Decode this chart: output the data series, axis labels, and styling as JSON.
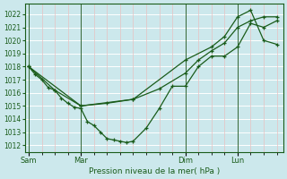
{
  "title": "",
  "xlabel": "Pression niveau de la mer( hPa )",
  "ylabel": "",
  "background_color": "#cce8ec",
  "grid_color": "#b0d8dc",
  "line_color": "#1a5c1a",
  "marker_color": "#1a5c1a",
  "ylim": [
    1011.5,
    1022.8
  ],
  "yticks": [
    1012,
    1013,
    1014,
    1015,
    1016,
    1017,
    1018,
    1019,
    1020,
    1021,
    1022
  ],
  "day_labels": [
    "Sam",
    "Mar",
    "Dim",
    "Lun"
  ],
  "day_positions": [
    0,
    4,
    12,
    16
  ],
  "xlim": [
    -0.3,
    19.5
  ],
  "vline_color": "#336633",
  "series1_x": [
    0,
    0.5,
    1,
    1.5,
    2,
    2.5,
    3,
    3.5,
    4,
    4.5,
    5,
    5.5,
    6,
    6.5,
    7,
    7.5,
    8,
    9,
    10,
    11,
    12,
    13,
    14,
    15,
    16,
    17,
    18,
    19
  ],
  "series1_y": [
    1018.0,
    1017.4,
    1017.0,
    1016.4,
    1016.2,
    1015.6,
    1015.2,
    1014.9,
    1014.8,
    1013.8,
    1013.5,
    1013.0,
    1012.5,
    1012.4,
    1012.3,
    1012.2,
    1012.3,
    1013.3,
    1014.8,
    1016.5,
    1016.5,
    1018.0,
    1018.8,
    1018.8,
    1019.5,
    1021.3,
    1021.0,
    1021.5
  ],
  "series2_x": [
    0,
    2,
    4,
    6,
    8,
    10,
    12,
    13,
    14,
    15,
    16,
    17,
    18,
    19
  ],
  "series2_y": [
    1018.0,
    1016.2,
    1015.0,
    1015.2,
    1015.5,
    1016.3,
    1017.5,
    1018.5,
    1019.2,
    1019.8,
    1021.0,
    1021.5,
    1021.8,
    1021.8
  ],
  "series3_x": [
    0,
    4,
    8,
    12,
    14,
    15,
    16,
    17,
    18,
    19
  ],
  "series3_y": [
    1018.0,
    1015.0,
    1015.5,
    1018.5,
    1019.5,
    1020.3,
    1021.8,
    1022.3,
    1020.0,
    1019.7
  ]
}
